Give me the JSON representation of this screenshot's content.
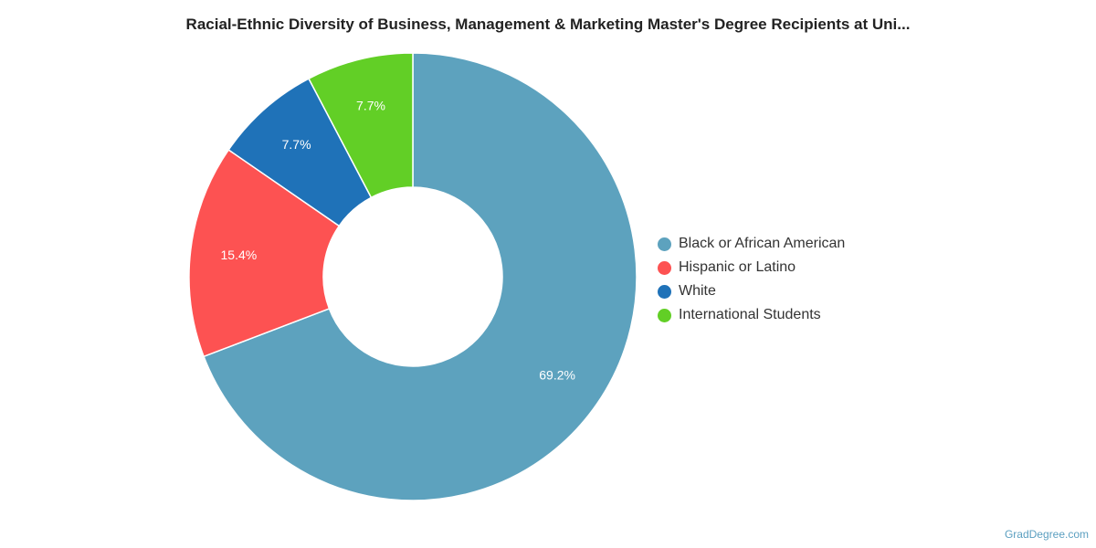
{
  "chart_data": {
    "type": "pie",
    "title": "Racial-Ethnic Diversity of Business, Management & Marketing Master's Degree Recipients at Uni...",
    "donut": true,
    "slices": [
      {
        "label": "Black or African American",
        "value": 69.2,
        "value_label": "69.2%",
        "color": "#5da2be"
      },
      {
        "label": "Hispanic or Latino",
        "value": 15.4,
        "value_label": "15.4%",
        "color": "#fd5252"
      },
      {
        "label": "White",
        "value": 7.7,
        "value_label": "7.7%",
        "color": "#1f72b8"
      },
      {
        "label": "International Students",
        "value": 7.7,
        "value_label": "7.7%",
        "color": "#62cf26"
      }
    ],
    "legend_position": "right"
  },
  "legend": {
    "items": [
      {
        "label": "Black or African American",
        "color": "#5da2be"
      },
      {
        "label": "Hispanic or Latino",
        "color": "#fd5252"
      },
      {
        "label": "White",
        "color": "#1f72b8"
      },
      {
        "label": "International Students",
        "color": "#62cf26"
      }
    ]
  },
  "credit": "GradDegree.com"
}
